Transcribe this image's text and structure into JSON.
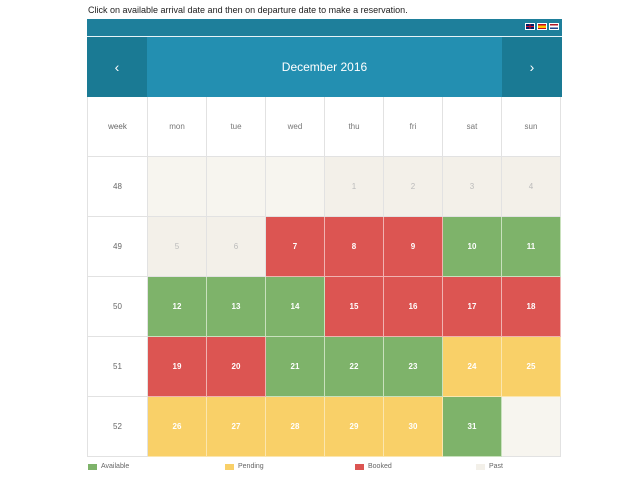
{
  "instruction": "Click on available arrival date and then on departure date to make a reservation.",
  "languages": [
    "english-flag",
    "spanish-flag",
    "dutch-flag"
  ],
  "header": {
    "prev_icon": "‹",
    "next_icon": "›",
    "month_title": "December 2016"
  },
  "day_headers": {
    "week": "week",
    "days": [
      "mon",
      "tue",
      "wed",
      "thu",
      "fri",
      "sat",
      "sun"
    ]
  },
  "weeks": [
    {
      "week": "48",
      "days": [
        {
          "d": "",
          "s": "empty"
        },
        {
          "d": "",
          "s": "empty"
        },
        {
          "d": "",
          "s": "empty"
        },
        {
          "d": "1",
          "s": "past"
        },
        {
          "d": "2",
          "s": "past"
        },
        {
          "d": "3",
          "s": "past"
        },
        {
          "d": "4",
          "s": "past"
        }
      ]
    },
    {
      "week": "49",
      "days": [
        {
          "d": "5",
          "s": "past"
        },
        {
          "d": "6",
          "s": "past"
        },
        {
          "d": "7",
          "s": "booked"
        },
        {
          "d": "8",
          "s": "booked"
        },
        {
          "d": "9",
          "s": "booked"
        },
        {
          "d": "10",
          "s": "available"
        },
        {
          "d": "11",
          "s": "available"
        }
      ]
    },
    {
      "week": "50",
      "days": [
        {
          "d": "12",
          "s": "available"
        },
        {
          "d": "13",
          "s": "available"
        },
        {
          "d": "14",
          "s": "available"
        },
        {
          "d": "15",
          "s": "booked"
        },
        {
          "d": "16",
          "s": "booked"
        },
        {
          "d": "17",
          "s": "booked"
        },
        {
          "d": "18",
          "s": "booked"
        }
      ]
    },
    {
      "week": "51",
      "days": [
        {
          "d": "19",
          "s": "booked"
        },
        {
          "d": "20",
          "s": "booked"
        },
        {
          "d": "21",
          "s": "available"
        },
        {
          "d": "22",
          "s": "available"
        },
        {
          "d": "23",
          "s": "available"
        },
        {
          "d": "24",
          "s": "pending"
        },
        {
          "d": "25",
          "s": "pending"
        }
      ]
    },
    {
      "week": "52",
      "days": [
        {
          "d": "26",
          "s": "pending"
        },
        {
          "d": "27",
          "s": "pending"
        },
        {
          "d": "28",
          "s": "pending"
        },
        {
          "d": "29",
          "s": "pending"
        },
        {
          "d": "30",
          "s": "pending"
        },
        {
          "d": "31",
          "s": "available"
        },
        {
          "d": "",
          "s": "empty"
        }
      ]
    }
  ],
  "legend": [
    {
      "label": "Available",
      "color": "#7eb36a"
    },
    {
      "label": "Pending",
      "color": "#f9d068"
    },
    {
      "label": "Booked",
      "color": "#dc5552"
    },
    {
      "label": "Past",
      "color": "#f3f0e9"
    }
  ]
}
